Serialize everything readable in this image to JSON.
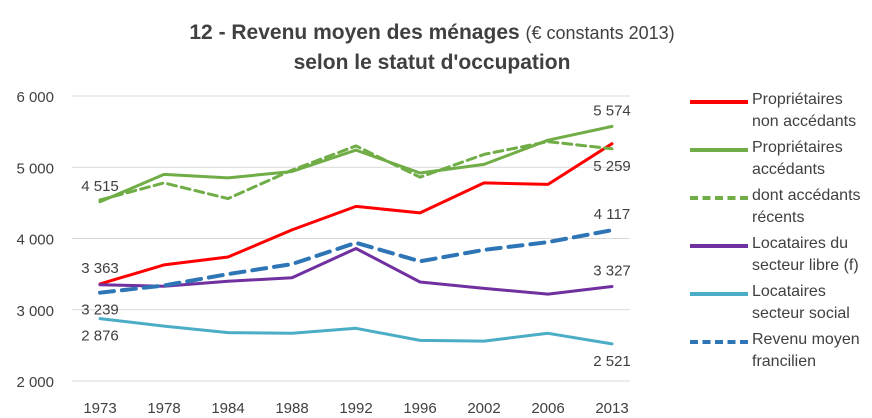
{
  "chart_data": {
    "type": "line",
    "title": "12 - Revenu moyen des ménages",
    "title_unit": "(€ constants 2013)",
    "subtitle": "selon le statut d'occupation",
    "categories": [
      "1973",
      "1978",
      "1984",
      "1988",
      "1992",
      "1996",
      "2002",
      "2006",
      "2013"
    ],
    "ylim": [
      2000,
      6000
    ],
    "yticks": [
      2000,
      3000,
      4000,
      5000,
      6000
    ],
    "ytick_labels": [
      "2 000",
      "3 000",
      "4 000",
      "5 000",
      "6 000"
    ],
    "grid": true,
    "legend_position": "right",
    "series": [
      {
        "name": "Propriétaires non accédants",
        "color": "#ff0000",
        "dash": "solid",
        "values": [
          3363,
          3630,
          3740,
          4120,
          4450,
          4360,
          4780,
          4760,
          5330
        ]
      },
      {
        "name": "Propriétaires accédants",
        "color": "#70ad47",
        "dash": "solid",
        "values": [
          4515,
          4900,
          4850,
          4940,
          5240,
          4920,
          5040,
          5380,
          5574
        ]
      },
      {
        "name": "dont accédants récents",
        "color": "#70ad47",
        "dash": "dashed",
        "values": [
          4540,
          4780,
          4560,
          4960,
          5300,
          4860,
          5180,
          5360,
          5259
        ]
      },
      {
        "name": "Locataires du secteur libre (f)",
        "color": "#7030a0",
        "dash": "solid",
        "values": [
          3350,
          3330,
          3400,
          3450,
          3860,
          3390,
          3300,
          3220,
          3327
        ]
      },
      {
        "name": "Locataires secteur social",
        "color": "#4bacc6",
        "dash": "solid",
        "values": [
          2876,
          2770,
          2680,
          2670,
          2740,
          2570,
          2560,
          2670,
          2521
        ]
      },
      {
        "name": "Revenu moyen francilien",
        "color": "#2e75b6",
        "dash": "longdash",
        "values": [
          3239,
          3340,
          3500,
          3640,
          3940,
          3680,
          3840,
          3950,
          4117
        ]
      }
    ],
    "data_labels": [
      {
        "text": "4 515",
        "series": 1,
        "index": 0,
        "pos": "above"
      },
      {
        "text": "3 363",
        "series": 0,
        "index": 0,
        "pos": "above"
      },
      {
        "text": "3 239",
        "series": 5,
        "index": 0,
        "pos": "below"
      },
      {
        "text": "2 876",
        "series": 4,
        "index": 0,
        "pos": "below"
      },
      {
        "text": "5 574",
        "series": 1,
        "index": 8,
        "pos": "above"
      },
      {
        "text": "5 259",
        "series": 2,
        "index": 8,
        "pos": "below"
      },
      {
        "text": "4 117",
        "series": 5,
        "index": 8,
        "pos": "above"
      },
      {
        "text": "3 327",
        "series": 3,
        "index": 8,
        "pos": "above"
      },
      {
        "text": "2 521",
        "series": 4,
        "index": 8,
        "pos": "below"
      }
    ]
  },
  "legend": {
    "items": [
      {
        "label": "Propriétaires non accédants"
      },
      {
        "label": "Propriétaires accédants"
      },
      {
        "label": "dont accédants récents"
      },
      {
        "label": "Locataires du secteur libre (f)"
      },
      {
        "label": "Locataires secteur social"
      },
      {
        "label": "Revenu moyen francilien"
      }
    ]
  }
}
